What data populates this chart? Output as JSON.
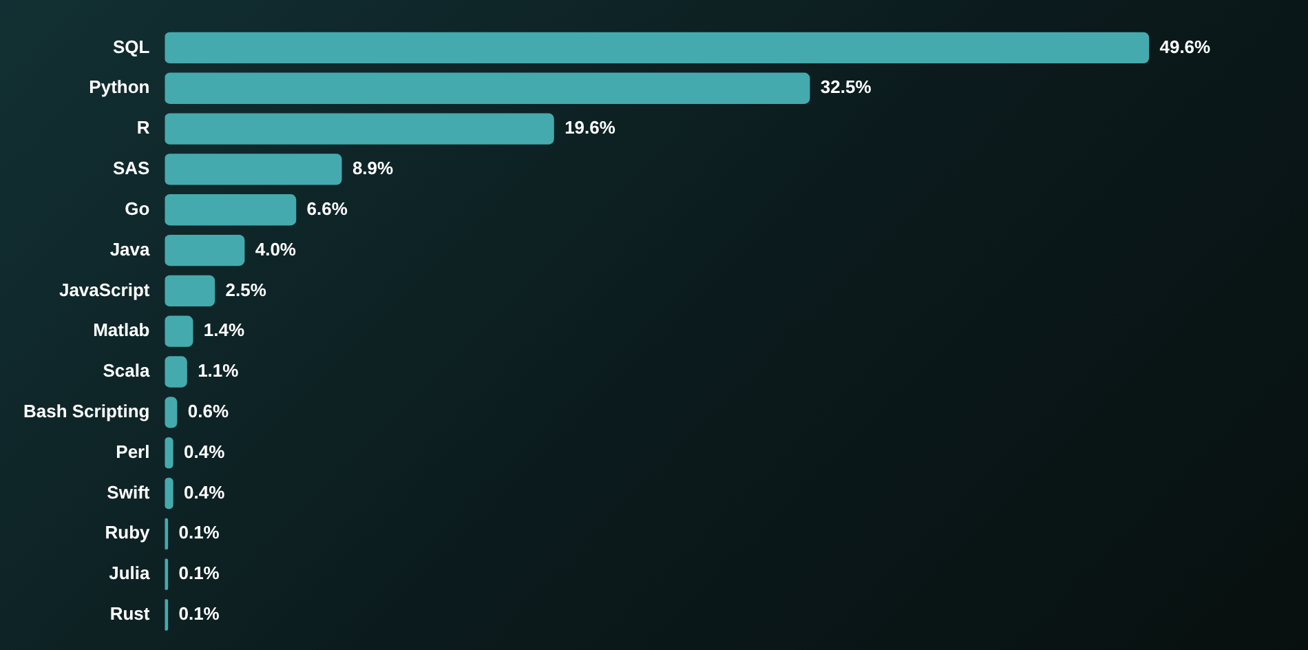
{
  "chart_data": {
    "type": "bar",
    "orientation": "horizontal",
    "tick_labels": "y",
    "categories": [
      "SQL",
      "Python",
      "R",
      "SAS",
      "Go",
      "Java",
      "JavaScript",
      "Matlab",
      "Scala",
      "Bash Scripting",
      "Perl",
      "Swift",
      "Ruby",
      "Julia",
      "Rust"
    ],
    "values": [
      49.6,
      32.5,
      19.6,
      8.9,
      6.6,
      4.0,
      2.5,
      1.4,
      1.1,
      0.6,
      0.4,
      0.4,
      0.1,
      0.1,
      0.1
    ],
    "value_labels": [
      "49.6%",
      "32.5%",
      "19.6%",
      "8.9%",
      "6.6%",
      "4.0%",
      "2.5%",
      "1.4%",
      "1.1%",
      "0.6%",
      "0.4%",
      "0.4%",
      "0.1%",
      "0.1%",
      "0.1%"
    ],
    "color": "#45aaad",
    "legend": false
  }
}
